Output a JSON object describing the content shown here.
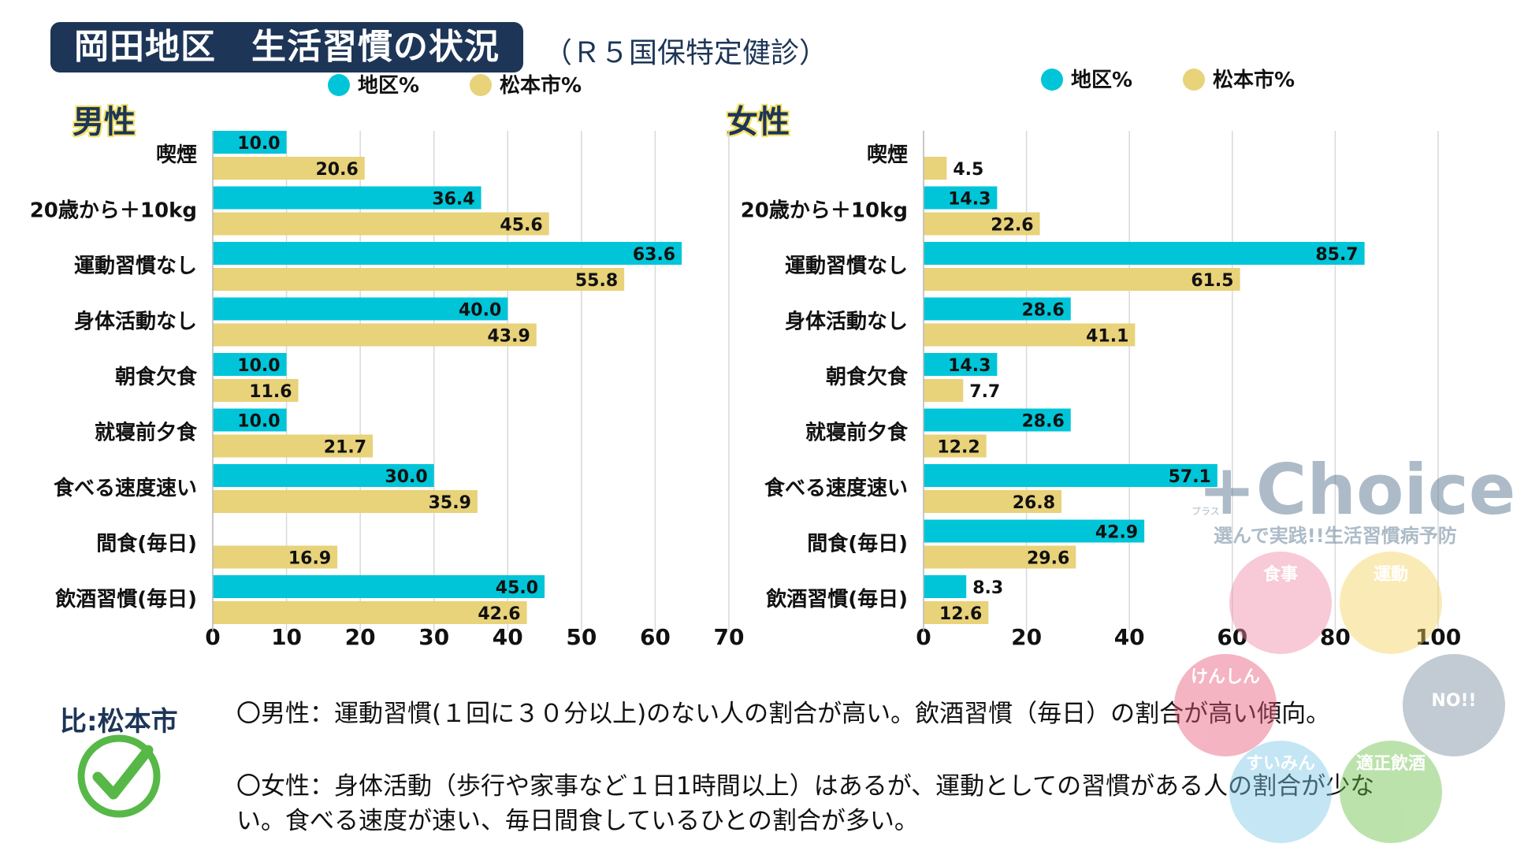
{
  "header": {
    "title": "岡田地区　生活習慣の状況",
    "subtitle": "（Ｒ５国保特定健診）"
  },
  "colors": {
    "district": "#00c5d8",
    "city": "#e8d27a",
    "grid": "#d9d9d9",
    "navy": "#1d3557"
  },
  "chart_data": [
    {
      "type": "bar",
      "orientation": "horizontal",
      "title": "男性",
      "categories": [
        "喫煙",
        "20歳から＋10kg",
        "運動習慣なし",
        "身体活動なし",
        "朝食欠食",
        "就寝前夕食",
        "食べる速度速い",
        "間食(毎日)",
        "飲酒習慣(毎日)"
      ],
      "series": [
        {
          "name": "地区%",
          "values": [
            10.0,
            36.4,
            63.6,
            40.0,
            10.0,
            10.0,
            30.0,
            null,
            45.0
          ]
        },
        {
          "name": "松本市%",
          "values": [
            20.6,
            45.6,
            55.8,
            43.9,
            11.6,
            21.7,
            35.9,
            16.9,
            42.6
          ]
        }
      ],
      "xlim": [
        0,
        70
      ],
      "ticks": [
        0,
        10,
        20,
        30,
        40,
        50,
        60,
        70
      ],
      "grid": true,
      "legend": "top"
    },
    {
      "type": "bar",
      "orientation": "horizontal",
      "title": "女性",
      "categories": [
        "喫煙",
        "20歳から＋10kg",
        "運動習慣なし",
        "身体活動なし",
        "朝食欠食",
        "就寝前夕食",
        "食べる速度速い",
        "間食(毎日)",
        "飲酒習慣(毎日)"
      ],
      "series": [
        {
          "name": "地区%",
          "values": [
            null,
            14.3,
            85.7,
            28.6,
            14.3,
            28.6,
            57.1,
            42.9,
            8.3
          ]
        },
        {
          "name": "松本市%",
          "values": [
            4.5,
            22.6,
            61.5,
            41.1,
            7.7,
            12.2,
            26.8,
            29.6,
            12.6
          ]
        }
      ],
      "xlim": [
        0,
        100
      ],
      "ticks": [
        0,
        20,
        40,
        60,
        80,
        100
      ],
      "grid": true,
      "legend": "top"
    }
  ],
  "footer": {
    "ref_label": "比:松本市",
    "note_male": "〇男性：運動習慣(１回に３０分以上)のない人の割合が高い。飲酒習慣（毎日）の割合が高い傾向。",
    "note_female_1": "〇女性：身体活動（歩行や家事など１日1時間以上）はあるが、運動としての習慣がある人の割合が少な",
    "note_female_2": "い。食べる速度が速い、毎日間食しているひとの割合が多い。"
  },
  "logo": {
    "brand": "+Choice",
    "kana": "プラス",
    "tagline": "選んで実践!!生活習慣病予防",
    "circles": [
      "食事",
      "運動",
      "けんしん",
      "NO!!",
      "すいみん",
      "適正飲酒"
    ]
  }
}
